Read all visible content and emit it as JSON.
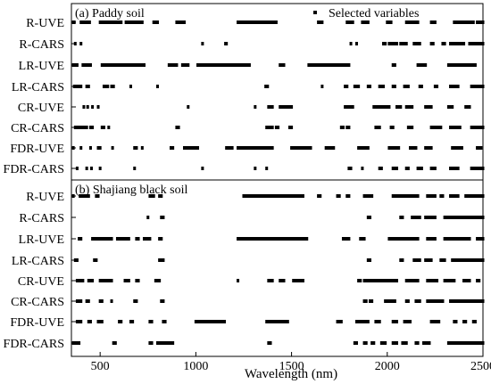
{
  "chart_data": {
    "type": "scatter",
    "xlabel": "Wavelength (nm)",
    "xlim": [
      350,
      2500
    ],
    "xticks": [
      500,
      1000,
      1500,
      2000,
      2500
    ],
    "legend": {
      "label": "Selected variables",
      "placement": "top-right"
    },
    "panels": [
      {
        "title": "(a)  Paddy soil",
        "rows": [
          {
            "name": "R-UVE",
            "ranges": [
              [
                360,
                365
              ],
              [
                400,
                445
              ],
              [
                500,
                610
              ],
              [
                635,
                720
              ],
              [
                780,
                800
              ],
              [
                900,
                940
              ],
              [
                1220,
                1420
              ],
              [
                1640,
                1660
              ],
              [
                1790,
                1820
              ],
              [
                1870,
                1900
              ],
              [
                2000,
                2020
              ],
              [
                2100,
                2160
              ],
              [
                2230,
                2250
              ],
              [
                2350,
                2450
              ],
              [
                2470,
                2500
              ]
            ]
          },
          {
            "name": "R-CARS",
            "ranges": [
              [
                370,
                370
              ],
              [
                400,
                400
              ],
              [
                1035,
                1035
              ],
              [
                1155,
                1160
              ],
              [
                1810,
                1810
              ],
              [
                1840,
                1840
              ],
              [
                1980,
                1990
              ],
              [
                2010,
                2050
              ],
              [
                2070,
                2100
              ],
              [
                2140,
                2170
              ],
              [
                2230,
                2240
              ],
              [
                2290,
                2300
              ],
              [
                2330,
                2400
              ],
              [
                2430,
                2500
              ]
            ]
          },
          {
            "name": "LR-UVE",
            "ranges": [
              [
                360,
                380
              ],
              [
                410,
                450
              ],
              [
                510,
                730
              ],
              [
                860,
                900
              ],
              [
                930,
                960
              ],
              [
                1010,
                1280
              ],
              [
                1440,
                1460
              ],
              [
                1590,
                1800
              ],
              [
                2030,
                2040
              ],
              [
                2160,
                2200
              ],
              [
                2320,
                2460
              ]
            ]
          },
          {
            "name": "LR-CARS",
            "ranges": [
              [
                365,
                400
              ],
              [
                430,
                440
              ],
              [
                520,
                540
              ],
              [
                560,
                570
              ],
              [
                660,
                660
              ],
              [
                800,
                800
              ],
              [
                1365,
                1375
              ],
              [
                1660,
                1660
              ],
              [
                1780,
                1790
              ],
              [
                1830,
                1850
              ],
              [
                1900,
                1910
              ],
              [
                1960,
                1980
              ],
              [
                2030,
                2040
              ],
              [
                2090,
                2110
              ],
              [
                2170,
                2180
              ],
              [
                2250,
                2260
              ],
              [
                2330,
                2370
              ],
              [
                2440,
                2500
              ]
            ]
          },
          {
            "name": "CR-UVE",
            "ranges": [
              [
                415,
                415
              ],
              [
                435,
                435
              ],
              [
                460,
                460
              ],
              [
                490,
                490
              ],
              [
                960,
                960
              ],
              [
                1310,
                1310
              ],
              [
                1380,
                1400
              ],
              [
                1440,
                1500
              ],
              [
                1780,
                1820
              ],
              [
                1930,
                2010
              ],
              [
                2050,
                2070
              ],
              [
                2100,
                2130
              ],
              [
                2200,
                2230
              ],
              [
                2320,
                2340
              ],
              [
                2410,
                2430
              ]
            ]
          },
          {
            "name": "CR-CARS",
            "ranges": [
              [
                370,
                430
              ],
              [
                450,
                460
              ],
              [
                510,
                520
              ],
              [
                545,
                545
              ],
              [
                900,
                910
              ],
              [
                1370,
                1400
              ],
              [
                1420,
                1430
              ],
              [
                1490,
                1500
              ],
              [
                1760,
                1770
              ],
              [
                1790,
                1800
              ],
              [
                1940,
                1960
              ],
              [
                2020,
                2030
              ],
              [
                2110,
                2130
              ],
              [
                2230,
                2280
              ],
              [
                2330,
                2380
              ],
              [
                2440,
                2500
              ]
            ]
          },
          {
            "name": "FDR-UVE",
            "ranges": [
              [
                360,
                360
              ],
              [
                400,
                400
              ],
              [
                450,
                450
              ],
              [
                490,
                500
              ],
              [
                565,
                565
              ],
              [
                680,
                690
              ],
              [
                720,
                720
              ],
              [
                870,
                880
              ],
              [
                940,
                1010
              ],
              [
                1160,
                1190
              ],
              [
                1220,
                1400
              ],
              [
                1500,
                1600
              ],
              [
                1680,
                1720
              ],
              [
                1850,
                1900
              ],
              [
                2010,
                2060
              ],
              [
                2120,
                2150
              ],
              [
                2200,
                2230
              ],
              [
                2340,
                2390
              ],
              [
                2470,
                2490
              ]
            ]
          },
          {
            "name": "FDR-CARS",
            "ranges": [
              [
                380,
                380
              ],
              [
                430,
                430
              ],
              [
                455,
                455
              ],
              [
                500,
                500
              ],
              [
                680,
                680
              ],
              [
                1035,
                1035
              ],
              [
                1310,
                1310
              ],
              [
                1370,
                1370
              ],
              [
                1800,
                1810
              ],
              [
                1870,
                1870
              ],
              [
                1960,
                1970
              ],
              [
                2030,
                2050
              ],
              [
                2100,
                2110
              ],
              [
                2160,
                2180
              ],
              [
                2230,
                2250
              ],
              [
                2330,
                2370
              ],
              [
                2440,
                2500
              ]
            ]
          }
        ]
      },
      {
        "title": "(b) Shajiang black soil",
        "rows": [
          {
            "name": "R-UVE",
            "ranges": [
              [
                360,
                360
              ],
              [
                395,
                440
              ],
              [
                480,
                490
              ],
              [
                760,
                780
              ],
              [
                810,
                820
              ],
              [
                1250,
                1560
              ],
              [
                1640,
                1650
              ],
              [
                1740,
                1750
              ],
              [
                1790,
                1800
              ],
              [
                1880,
                1920
              ],
              [
                2030,
                2160
              ],
              [
                2210,
                2250
              ],
              [
                2280,
                2290
              ],
              [
                2330,
                2370
              ],
              [
                2410,
                2500
              ]
            ]
          },
          {
            "name": "R-CARS",
            "ranges": [
              [
                750,
                750
              ],
              [
                820,
                830
              ],
              [
                1900,
                1910
              ],
              [
                2070,
                2080
              ],
              [
                2130,
                2170
              ],
              [
                2200,
                2250
              ],
              [
                2300,
                2500
              ]
            ]
          },
          {
            "name": "LR-UVE",
            "ranges": [
              [
                390,
                400
              ],
              [
                460,
                560
              ],
              [
                590,
                650
              ],
              [
                690,
                700
              ],
              [
                730,
                760
              ],
              [
                810,
                820
              ],
              [
                1220,
                1580
              ],
              [
                1770,
                1800
              ],
              [
                1860,
                1880
              ],
              [
                2010,
                2160
              ],
              [
                2210,
                2250
              ],
              [
                2300,
                2430
              ],
              [
                2470,
                2500
              ]
            ]
          },
          {
            "name": "LR-CARS",
            "ranges": [
              [
                370,
                380
              ],
              [
                470,
                480
              ],
              [
                810,
                830
              ],
              [
                1900,
                1910
              ],
              [
                2070,
                2080
              ],
              [
                2140,
                2170
              ],
              [
                2200,
                2230
              ],
              [
                2280,
                2300
              ],
              [
                2340,
                2500
              ]
            ]
          },
          {
            "name": "CR-UVE",
            "ranges": [
              [
                380,
                410
              ],
              [
                440,
                460
              ],
              [
                500,
                560
              ],
              [
                630,
                650
              ],
              [
                690,
                700
              ],
              [
                790,
                810
              ],
              [
                1220,
                1220
              ],
              [
                1380,
                1400
              ],
              [
                1440,
                1460
              ],
              [
                1510,
                1560
              ],
              [
                1850,
                1860
              ],
              [
                1880,
                2050
              ],
              [
                2100,
                2160
              ],
              [
                2210,
                2260
              ],
              [
                2300,
                2350
              ],
              [
                2400,
                2430
              ],
              [
                2470,
                2480
              ]
            ]
          },
          {
            "name": "CR-CARS",
            "ranges": [
              [
                380,
                400
              ],
              [
                430,
                440
              ],
              [
                500,
                510
              ],
              [
                560,
                560
              ],
              [
                680,
                690
              ],
              [
                820,
                830
              ],
              [
                1880,
                1890
              ],
              [
                1910,
                1920
              ],
              [
                1990,
                2040
              ],
              [
                2100,
                2110
              ],
              [
                2150,
                2170
              ],
              [
                2210,
                2290
              ],
              [
                2330,
                2500
              ]
            ]
          },
          {
            "name": "FDR-UVE",
            "ranges": [
              [
                380,
                400
              ],
              [
                440,
                450
              ],
              [
                490,
                510
              ],
              [
                600,
                610
              ],
              [
                660,
                670
              ],
              [
                760,
                770
              ],
              [
                830,
                840
              ],
              [
                1000,
                1150
              ],
              [
                1370,
                1480
              ],
              [
                1740,
                1760
              ],
              [
                1840,
                1900
              ],
              [
                1940,
                1960
              ],
              [
                2030,
                2050
              ],
              [
                2090,
                2120
              ],
              [
                2230,
                2270
              ],
              [
                2350,
                2360
              ],
              [
                2400,
                2410
              ],
              [
                2450,
                2460
              ]
            ]
          },
          {
            "name": "FDR-CARS",
            "ranges": [
              [
                360,
                390
              ],
              [
                570,
                580
              ],
              [
                760,
                770
              ],
              [
                800,
                880
              ],
              [
                1380,
                1390
              ],
              [
                1830,
                1840
              ],
              [
                1880,
                1890
              ],
              [
                1920,
                1930
              ],
              [
                1970,
                1990
              ],
              [
                2030,
                2050
              ],
              [
                2080,
                2100
              ],
              [
                2150,
                2160
              ],
              [
                2190,
                2220
              ],
              [
                2320,
                2500
              ]
            ]
          }
        ]
      }
    ]
  }
}
